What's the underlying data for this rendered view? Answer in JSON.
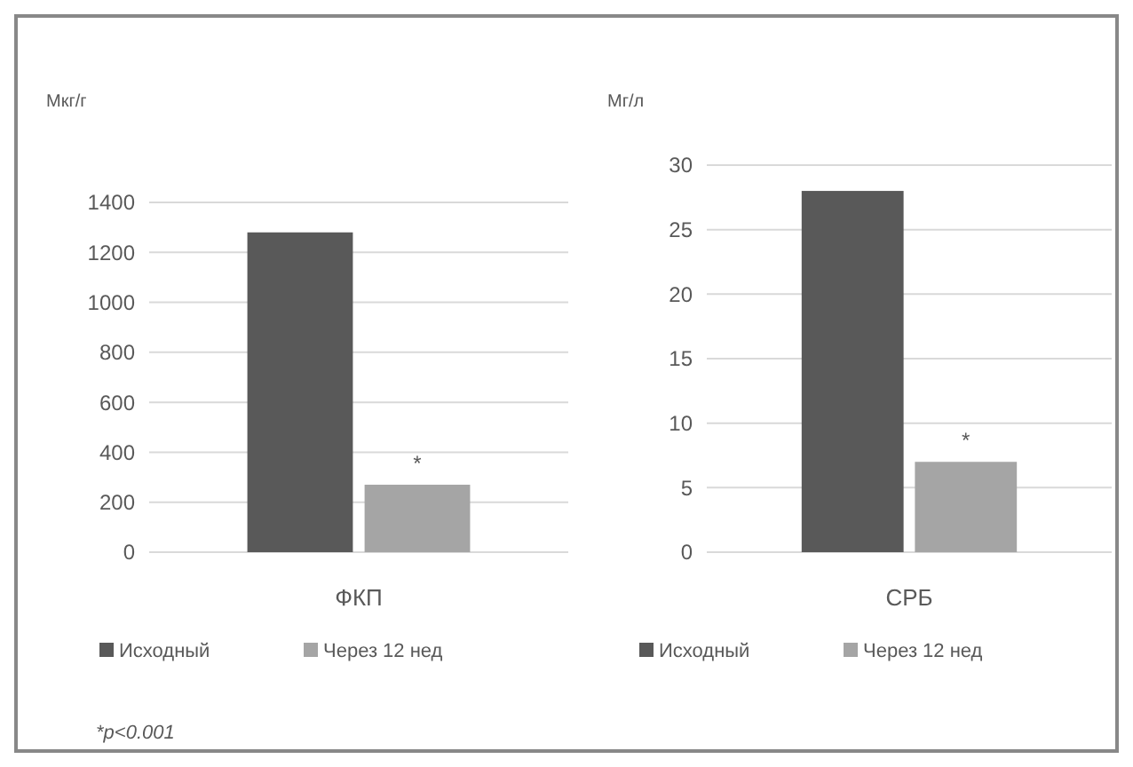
{
  "chart_data": [
    {
      "type": "bar",
      "ylabel": "Мкг/г",
      "categories": [
        "ФКП"
      ],
      "series": [
        {
          "name": "Исходный",
          "color": "#595959",
          "values": [
            1280
          ]
        },
        {
          "name": "Через 12 нед",
          "color": "#a5a5a5",
          "values": [
            270
          ]
        }
      ],
      "ylim": [
        0,
        1400
      ],
      "yticks": [
        0,
        200,
        400,
        600,
        800,
        1000,
        1200,
        1400
      ],
      "grid": "y",
      "legend": "bottom",
      "annotations": [
        {
          "text": "*",
          "x": "ФКП",
          "y": 270
        },
        "*p<0.001"
      ]
    },
    {
      "type": "bar",
      "ylabel": "Мг/л",
      "categories": [
        "СРБ"
      ],
      "series": [
        {
          "name": "Исходный",
          "color": "#595959",
          "values": [
            28
          ]
        },
        {
          "name": "Через 12 нед",
          "color": "#a5a5a5",
          "values": [
            7
          ]
        }
      ],
      "ylim": [
        0,
        30
      ],
      "yticks": [
        0,
        5,
        10,
        15,
        20,
        25,
        30
      ],
      "grid": "y",
      "legend": "bottom",
      "annotations": [
        {
          "text": "*",
          "x": "СРБ",
          "y": 7
        }
      ]
    }
  ]
}
